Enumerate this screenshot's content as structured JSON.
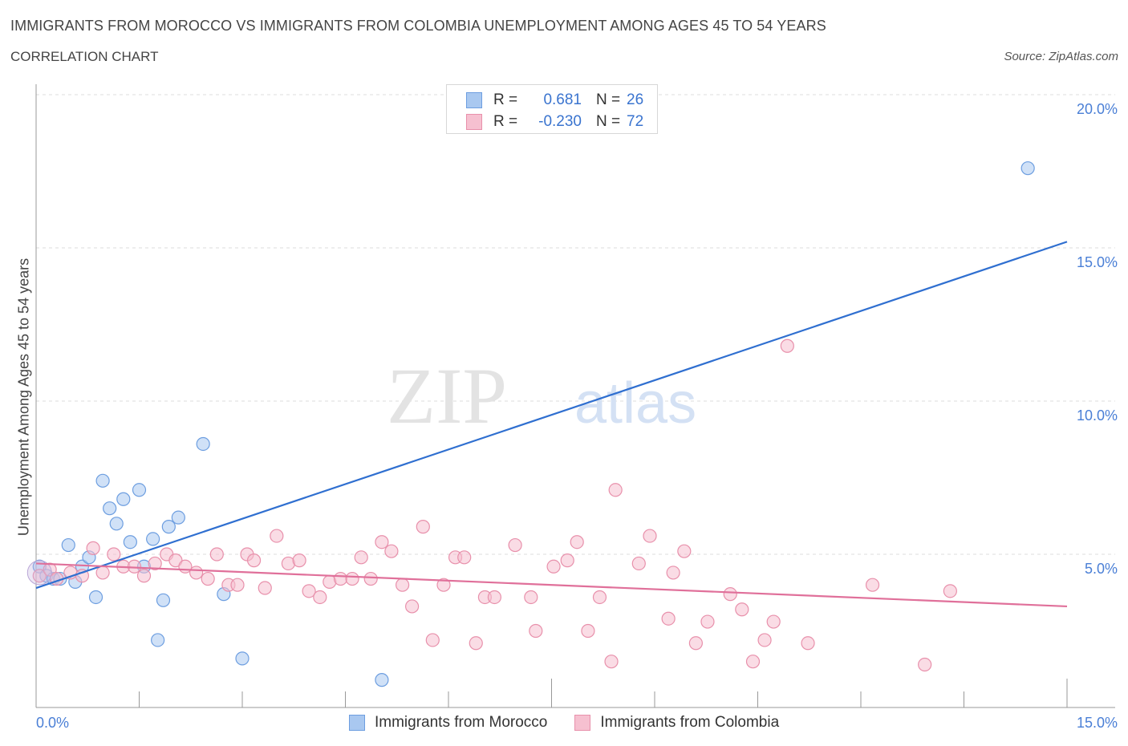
{
  "header": {
    "title": "IMMIGRANTS FROM MOROCCO VS IMMIGRANTS FROM COLOMBIA UNEMPLOYMENT AMONG AGES 45 TO 54 YEARS",
    "subtitle": "CORRELATION CHART",
    "source": "Source: ZipAtlas.com"
  },
  "watermark": {
    "zip": "ZIP",
    "atlas": "atlas"
  },
  "legend": {
    "rows": [
      {
        "r_label": "R =",
        "r_value": "0.681",
        "n_label": "N =",
        "n_value": "26",
        "color": "#a9c8f0",
        "border": "#6d9ee0"
      },
      {
        "r_label": "R =",
        "r_value": "-0.230",
        "n_label": "N =",
        "n_value": "72",
        "color": "#f6c0d0",
        "border": "#e890ab"
      }
    ]
  },
  "bottom_legend": [
    {
      "label": "Immigrants from Morocco",
      "color": "#a9c8f0",
      "border": "#6d9ee0"
    },
    {
      "label": "Immigrants from Colombia",
      "color": "#f6c0d0",
      "border": "#e890ab"
    }
  ],
  "chart_data": {
    "type": "scatter",
    "title": "IMMIGRANTS FROM MOROCCO VS IMMIGRANTS FROM COLOMBIA UNEMPLOYMENT AMONG AGES 45 TO 54 YEARS",
    "xlabel": "",
    "ylabel": "Unemployment Among Ages 45 to 54 years",
    "xlim": [
      0,
      15
    ],
    "ylim": [
      0,
      20
    ],
    "x_tick_labels": [
      "0.0%",
      "15.0%"
    ],
    "y_ticks": [
      5,
      10,
      15,
      20
    ],
    "y_tick_labels": [
      "5.0%",
      "10.0%",
      "15.0%",
      "20.0%"
    ],
    "grid": true,
    "series": [
      {
        "name": "Immigrants from Morocco",
        "color": "#a9c8f0",
        "stroke": "#6d9ee0",
        "line_color": "#2f6fd0",
        "trend": {
          "x": [
            0,
            15
          ],
          "y": [
            3.9,
            15.2
          ]
        },
        "points": [
          {
            "x": 0.05,
            "y": 4.6
          },
          {
            "x": 0.15,
            "y": 4.3
          },
          {
            "x": 0.25,
            "y": 4.2
          },
          {
            "x": 0.35,
            "y": 4.2
          },
          {
            "x": 0.47,
            "y": 5.3
          },
          {
            "x": 0.57,
            "y": 4.1
          },
          {
            "x": 0.67,
            "y": 4.6
          },
          {
            "x": 0.77,
            "y": 4.9
          },
          {
            "x": 0.87,
            "y": 3.6
          },
          {
            "x": 0.97,
            "y": 7.4
          },
          {
            "x": 1.07,
            "y": 6.5
          },
          {
            "x": 1.17,
            "y": 6.0
          },
          {
            "x": 1.27,
            "y": 6.8
          },
          {
            "x": 1.37,
            "y": 5.4
          },
          {
            "x": 1.5,
            "y": 7.1
          },
          {
            "x": 1.57,
            "y": 4.6
          },
          {
            "x": 1.7,
            "y": 5.5
          },
          {
            "x": 1.77,
            "y": 2.2
          },
          {
            "x": 1.85,
            "y": 3.5
          },
          {
            "x": 1.93,
            "y": 5.9
          },
          {
            "x": 2.07,
            "y": 6.2
          },
          {
            "x": 2.43,
            "y": 8.6
          },
          {
            "x": 2.73,
            "y": 3.7
          },
          {
            "x": 3.0,
            "y": 1.6
          },
          {
            "x": 5.03,
            "y": 0.9
          },
          {
            "x": 14.43,
            "y": 17.6
          }
        ]
      },
      {
        "name": "Immigrants from Colombia",
        "color": "#f6c0d0",
        "stroke": "#e890ab",
        "line_color": "#e0709a",
        "trend": {
          "x": [
            0,
            15
          ],
          "y": [
            4.7,
            3.3
          ]
        },
        "points": [
          {
            "x": 0.05,
            "y": 4.3
          },
          {
            "x": 0.2,
            "y": 4.5
          },
          {
            "x": 0.3,
            "y": 4.2
          },
          {
            "x": 0.5,
            "y": 4.4
          },
          {
            "x": 0.67,
            "y": 4.3
          },
          {
            "x": 0.83,
            "y": 5.2
          },
          {
            "x": 0.97,
            "y": 4.4
          },
          {
            "x": 1.13,
            "y": 5.0
          },
          {
            "x": 1.27,
            "y": 4.6
          },
          {
            "x": 1.43,
            "y": 4.6
          },
          {
            "x": 1.57,
            "y": 4.3
          },
          {
            "x": 1.73,
            "y": 4.7
          },
          {
            "x": 1.9,
            "y": 5.0
          },
          {
            "x": 2.03,
            "y": 4.8
          },
          {
            "x": 2.17,
            "y": 4.6
          },
          {
            "x": 2.33,
            "y": 4.4
          },
          {
            "x": 2.5,
            "y": 4.2
          },
          {
            "x": 2.63,
            "y": 5.0
          },
          {
            "x": 2.8,
            "y": 4.0
          },
          {
            "x": 2.93,
            "y": 4.0
          },
          {
            "x": 3.07,
            "y": 5.0
          },
          {
            "x": 3.17,
            "y": 4.8
          },
          {
            "x": 3.33,
            "y": 3.9
          },
          {
            "x": 3.5,
            "y": 5.6
          },
          {
            "x": 3.67,
            "y": 4.7
          },
          {
            "x": 3.83,
            "y": 4.8
          },
          {
            "x": 3.97,
            "y": 3.8
          },
          {
            "x": 4.13,
            "y": 3.6
          },
          {
            "x": 4.27,
            "y": 4.1
          },
          {
            "x": 4.43,
            "y": 4.2
          },
          {
            "x": 4.6,
            "y": 4.2
          },
          {
            "x": 4.73,
            "y": 4.9
          },
          {
            "x": 4.87,
            "y": 4.2
          },
          {
            "x": 5.03,
            "y": 5.4
          },
          {
            "x": 5.17,
            "y": 5.1
          },
          {
            "x": 5.33,
            "y": 4.0
          },
          {
            "x": 5.47,
            "y": 3.3
          },
          {
            "x": 5.63,
            "y": 5.9
          },
          {
            "x": 5.77,
            "y": 2.2
          },
          {
            "x": 5.93,
            "y": 4.0
          },
          {
            "x": 6.1,
            "y": 4.9
          },
          {
            "x": 6.23,
            "y": 4.9
          },
          {
            "x": 6.4,
            "y": 2.1
          },
          {
            "x": 6.53,
            "y": 3.6
          },
          {
            "x": 6.67,
            "y": 3.6
          },
          {
            "x": 6.97,
            "y": 5.3
          },
          {
            "x": 7.2,
            "y": 3.6
          },
          {
            "x": 7.27,
            "y": 2.5
          },
          {
            "x": 7.53,
            "y": 4.6
          },
          {
            "x": 7.73,
            "y": 4.8
          },
          {
            "x": 7.87,
            "y": 5.4
          },
          {
            "x": 8.03,
            "y": 2.5
          },
          {
            "x": 8.2,
            "y": 3.6
          },
          {
            "x": 8.37,
            "y": 1.5
          },
          {
            "x": 8.43,
            "y": 7.1
          },
          {
            "x": 8.77,
            "y": 4.7
          },
          {
            "x": 8.93,
            "y": 5.6
          },
          {
            "x": 9.2,
            "y": 2.9
          },
          {
            "x": 9.27,
            "y": 4.4
          },
          {
            "x": 9.43,
            "y": 5.1
          },
          {
            "x": 9.6,
            "y": 2.1
          },
          {
            "x": 9.77,
            "y": 2.8
          },
          {
            "x": 10.1,
            "y": 3.7
          },
          {
            "x": 10.27,
            "y": 3.2
          },
          {
            "x": 10.43,
            "y": 1.5
          },
          {
            "x": 10.6,
            "y": 2.2
          },
          {
            "x": 10.73,
            "y": 2.8
          },
          {
            "x": 10.93,
            "y": 11.8
          },
          {
            "x": 11.23,
            "y": 2.1
          },
          {
            "x": 12.17,
            "y": 4.0
          },
          {
            "x": 12.93,
            "y": 1.4
          },
          {
            "x": 13.3,
            "y": 3.8
          }
        ]
      }
    ]
  }
}
